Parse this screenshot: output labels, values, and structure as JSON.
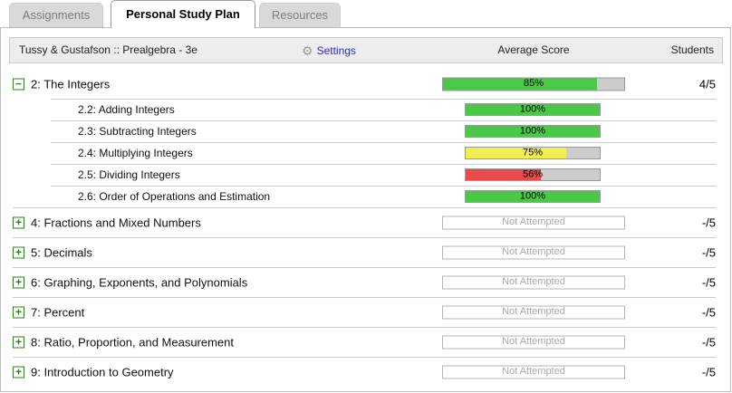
{
  "tabs": [
    {
      "label": "Assignments",
      "active": false
    },
    {
      "label": "Personal Study Plan",
      "active": true
    },
    {
      "label": "Resources",
      "active": false
    }
  ],
  "header": {
    "course_title": "Tussy & Gustafson :: Prealgebra - 3e",
    "settings_label": "Settings",
    "avg_score_col": "Average Score",
    "students_col": "Students"
  },
  "icons": {
    "collapse": "−",
    "expand": "+",
    "gear": "⚙"
  },
  "colors": {
    "green": "#4ac948",
    "yellow": "#f1ee54",
    "red": "#e74b4b",
    "bar_track": "#cccccc",
    "icon_green": "#2f7e1f",
    "link_blue": "#2b2bd5"
  },
  "rows": [
    {
      "type": "chapter",
      "toggle": "collapse",
      "label": "2: The Integers",
      "bar": {
        "state": "scored",
        "pct": 85,
        "text": "85%",
        "color": "green"
      },
      "students": "4/5",
      "children": [
        {
          "label": "2.2: Adding Integers",
          "bar": {
            "state": "scored",
            "pct": 100,
            "text": "100%",
            "color": "green"
          }
        },
        {
          "label": "2.3: Subtracting Integers",
          "bar": {
            "state": "scored",
            "pct": 100,
            "text": "100%",
            "color": "green"
          }
        },
        {
          "label": "2.4: Multiplying Integers",
          "bar": {
            "state": "scored",
            "pct": 75,
            "text": "75%",
            "color": "yellow"
          }
        },
        {
          "label": "2.5: Dividing Integers",
          "bar": {
            "state": "scored",
            "pct": 56,
            "text": "56%",
            "color": "red"
          }
        },
        {
          "label": "2.6: Order of Operations and Estimation",
          "bar": {
            "state": "scored",
            "pct": 100,
            "text": "100%",
            "color": "green"
          }
        }
      ]
    },
    {
      "type": "chapter",
      "toggle": "expand",
      "label": "4: Fractions and Mixed Numbers",
      "bar": {
        "state": "not_attempted",
        "text": "Not Attempted"
      },
      "students": "-/5",
      "children": []
    },
    {
      "type": "chapter",
      "toggle": "expand",
      "label": "5: Decimals",
      "bar": {
        "state": "not_attempted",
        "text": "Not Attempted"
      },
      "students": "-/5",
      "children": []
    },
    {
      "type": "chapter",
      "toggle": "expand",
      "label": "6: Graphing, Exponents, and Polynomials",
      "bar": {
        "state": "not_attempted",
        "text": "Not Attempted"
      },
      "students": "-/5",
      "children": []
    },
    {
      "type": "chapter",
      "toggle": "expand",
      "label": "7: Percent",
      "bar": {
        "state": "not_attempted",
        "text": "Not Attempted"
      },
      "students": "-/5",
      "children": []
    },
    {
      "type": "chapter",
      "toggle": "expand",
      "label": "8: Ratio, Proportion, and Measurement",
      "bar": {
        "state": "not_attempted",
        "text": "Not Attempted"
      },
      "students": "-/5",
      "children": []
    },
    {
      "type": "chapter",
      "toggle": "expand",
      "label": "9: Introduction to Geometry",
      "bar": {
        "state": "not_attempted",
        "text": "Not Attempted"
      },
      "students": "-/5",
      "children": []
    }
  ]
}
